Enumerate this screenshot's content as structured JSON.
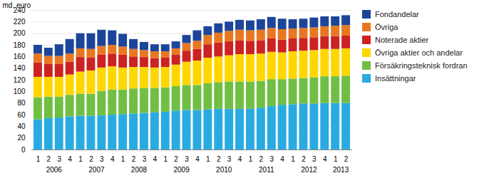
{
  "chart_data": {
    "type": "bar",
    "stacked": true,
    "categories": [
      "1",
      "2",
      "3",
      "4",
      "1",
      "2",
      "3",
      "4",
      "1",
      "2",
      "3",
      "4",
      "1",
      "2",
      "3",
      "4",
      "1",
      "2",
      "3",
      "4",
      "1",
      "2",
      "3",
      "4",
      "1",
      "2",
      "3",
      "4",
      "1",
      "2"
    ],
    "annotations": [
      "2006",
      "2007",
      "2008",
      "2009",
      "2010",
      "2011",
      "2012",
      "2013"
    ],
    "ylabel": "md. euro",
    "series": [
      {
        "name": "Insättningar",
        "color": "#29ABE2",
        "values": [
          52,
          54,
          55,
          57,
          58,
          58,
          59,
          60,
          61,
          62,
          63,
          64,
          65,
          67,
          68,
          68,
          69,
          70,
          70,
          70,
          70,
          72,
          75,
          77,
          78,
          79,
          79,
          80,
          80,
          80
        ]
      },
      {
        "name": "Försäkringsteknisk fordran",
        "color": "#70BF44",
        "values": [
          38,
          37,
          36,
          37,
          38,
          38,
          42,
          43,
          42,
          43,
          43,
          42,
          42,
          42,
          43,
          43,
          45,
          46,
          47,
          47,
          47,
          46,
          46,
          44,
          44,
          44,
          45,
          46,
          46,
          47
        ]
      },
      {
        "name": "Övriga aktier och andelar",
        "color": "#FFD700",
        "values": [
          35,
          34,
          34,
          35,
          38,
          40,
          40,
          40,
          38,
          37,
          36,
          35,
          35,
          37,
          40,
          42,
          44,
          44,
          45,
          47,
          47,
          47,
          47,
          46,
          47,
          47,
          47,
          47,
          47,
          47
        ]
      },
      {
        "name": "Noterade aktier",
        "color": "#CC2222",
        "values": [
          25,
          22,
          22,
          22,
          25,
          22,
          22,
          22,
          22,
          18,
          17,
          16,
          16,
          17,
          19,
          20,
          23,
          24,
          24,
          24,
          23,
          23,
          23,
          22,
          22,
          22,
          22,
          22,
          22,
          22
        ]
      },
      {
        "name": "Övriga",
        "color": "#E87722",
        "values": [
          15,
          14,
          14,
          14,
          15,
          15,
          15,
          15,
          14,
          13,
          12,
          12,
          11,
          11,
          13,
          14,
          16,
          17,
          18,
          18,
          18,
          18,
          18,
          18,
          17,
          17,
          17,
          17,
          18,
          18
        ]
      },
      {
        "name": "Fondandelar",
        "color": "#1C4599",
        "values": [
          15,
          14,
          20,
          25,
          26,
          27,
          28,
          25,
          22,
          17,
          14,
          12,
          12,
          12,
          14,
          18,
          15,
          16,
          16,
          17,
          17,
          18,
          19,
          18,
          16,
          16,
          17,
          17,
          16,
          17
        ]
      }
    ],
    "ylim": [
      0,
      240
    ],
    "yticks": [
      0,
      20,
      40,
      60,
      80,
      100,
      120,
      140,
      160,
      180,
      200,
      220,
      240
    ],
    "grid": true,
    "legend": "right"
  }
}
